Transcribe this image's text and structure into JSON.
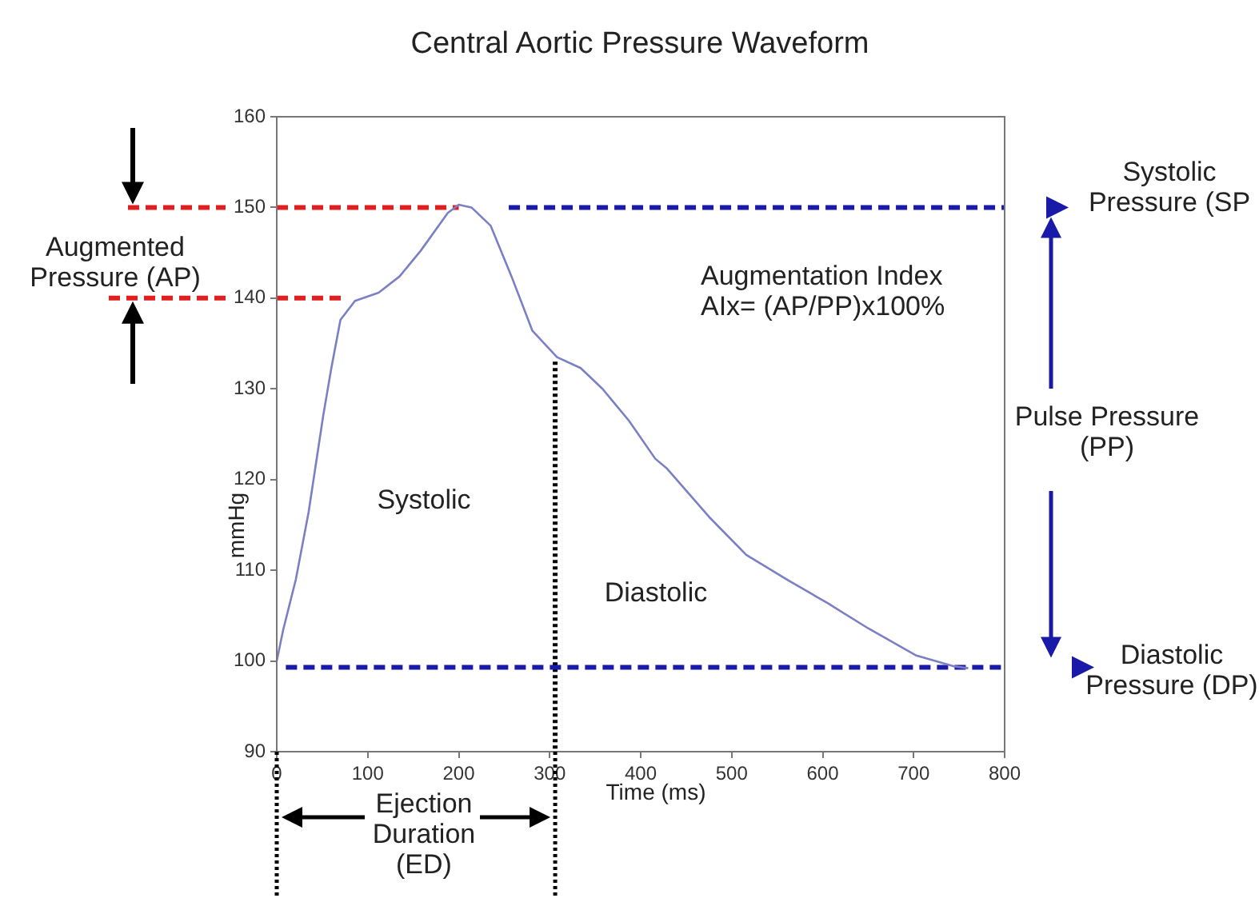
{
  "chart_data": {
    "type": "line",
    "title": "Central Aortic Pressure Waveform",
    "xlabel": "Time (ms)",
    "ylabel": "mmHg",
    "xlim": [
      0,
      800
    ],
    "xticks": [
      0,
      100,
      200,
      300,
      400,
      500,
      600,
      700,
      800
    ],
    "ylim": [
      90,
      160
    ],
    "yticks": [
      90,
      100,
      110,
      120,
      130,
      140,
      150,
      160
    ],
    "grid": false,
    "legend": false,
    "marker": "none",
    "series": [
      {
        "color": "#7b7fc4",
        "line_style": "solid",
        "x": [
          0,
          7,
          21,
          35,
          51,
          60,
          70,
          86,
          112,
          135,
          158,
          188,
          200,
          214,
          235,
          258,
          281,
          308,
          334,
          358,
          387,
          416,
          429,
          475,
          516,
          562,
          605,
          650,
          703,
          745,
          760
        ],
        "values": [
          100,
          103.4,
          109,
          116.4,
          127,
          132.3,
          137.6,
          139.7,
          140.6,
          142.4,
          145.2,
          149.4,
          150.3,
          150,
          148,
          142.4,
          136.4,
          133.5,
          132.3,
          130,
          126.5,
          122.3,
          121.2,
          115.9,
          111.7,
          108.9,
          106.4,
          103.6,
          100.6,
          99.4,
          99.2
        ]
      },
      {
        "color": "#e02020",
        "line_style": "dashed",
        "x": [
          0,
          200
        ],
        "values": [
          150,
          150
        ]
      },
      {
        "color": "#e02020",
        "line_style": "dashed",
        "x": [
          0,
          75
        ],
        "values": [
          140,
          140
        ]
      },
      {
        "color": "#1a1aa8",
        "line_style": "dashed",
        "x": [
          255,
          800
        ],
        "values": [
          150,
          150
        ]
      },
      {
        "color": "#1a1aa8",
        "line_style": "dashed",
        "x": [
          10,
          800
        ],
        "values": [
          99.3,
          99.3
        ]
      },
      {
        "color": "#000000",
        "line_style": "dotted",
        "x": [
          306,
          306
        ],
        "values": [
          133,
          90
        ]
      }
    ],
    "annotations": [
      "Augmented Pressure (AP)",
      "Augmentation Index AIx= (AP/PP)x100%",
      "Systolic",
      "Diastolic",
      "Systolic Pressure (SP",
      "Pulse Pressure (PP)",
      "Diastolic Pressure (DP)",
      "Ejection Duration (ED)"
    ]
  }
}
